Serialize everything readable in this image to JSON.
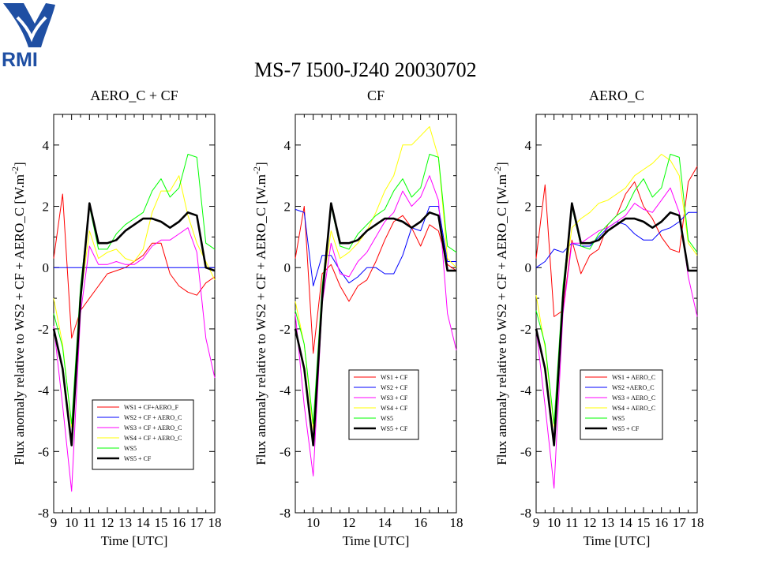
{
  "page": {
    "logo_text": "RMI",
    "logo_color": "#1f4fa3",
    "title": "MS-7 I500-J240 20030702"
  },
  "chart_data": [
    {
      "type": "line",
      "title": "AERO_C + CF",
      "xlabel": "Time [UTC]",
      "ylabel": "Flux anomaly relative to WS2 + CF + AERO_C [W.m^-2]",
      "xlim": [
        9,
        18
      ],
      "ylim": [
        -8,
        5
      ],
      "xticks": [
        9,
        10,
        11,
        12,
        13,
        14,
        15,
        16,
        17,
        18
      ],
      "yticks": [
        -8,
        -6,
        -4,
        -2,
        0,
        2,
        4
      ],
      "x": [
        9,
        9.5,
        10,
        10.5,
        11,
        11.5,
        12,
        12.5,
        13,
        13.5,
        14,
        14.5,
        15,
        15.5,
        16,
        16.5,
        17,
        17.5,
        18
      ],
      "grid": false,
      "legend_position": "bottom-right",
      "series": [
        {
          "name": "WS1 + CF+AERO_F",
          "color": "#ff0000",
          "width": 1,
          "values": [
            0.3,
            2.4,
            -2.3,
            -1.4,
            -1.0,
            -0.6,
            -0.2,
            -0.1,
            0.0,
            0.2,
            0.4,
            0.8,
            0.8,
            -0.2,
            -0.6,
            -0.8,
            -0.9,
            -0.5,
            -0.3
          ]
        },
        {
          "name": "WS2 + CF + AERO_C",
          "color": "#0000ff",
          "width": 1,
          "values": [
            0,
            0,
            0,
            0,
            0,
            0,
            0,
            0,
            0,
            0,
            0,
            0,
            0,
            0,
            0,
            0,
            0,
            0,
            0
          ]
        },
        {
          "name": "WS3 + CF + AERO_C",
          "color": "#ff00ff",
          "width": 1,
          "values": [
            -1.9,
            -4.5,
            -7.3,
            -1.5,
            0.7,
            0.1,
            0.1,
            0.2,
            0.1,
            0.1,
            0.3,
            0.7,
            0.9,
            0.9,
            1.1,
            1.3,
            0.5,
            -2.3,
            -3.6
          ]
        },
        {
          "name": "WS4 + CF + AERO_C",
          "color": "#ffff00",
          "width": 1,
          "values": [
            -1.0,
            -2.5,
            -5.2,
            -1.0,
            1.2,
            0.3,
            0.5,
            0.6,
            0.3,
            0.2,
            0.6,
            1.8,
            2.5,
            2.5,
            3.0,
            1.7,
            0.8,
            0.2,
            -0.4
          ]
        },
        {
          "name": "WS5",
          "color": "#00ff00",
          "width": 1,
          "values": [
            -1.5,
            -2.6,
            -5.1,
            -0.6,
            2.0,
            0.6,
            0.6,
            1.1,
            1.4,
            1.6,
            1.8,
            2.5,
            2.9,
            2.3,
            2.6,
            3.7,
            3.6,
            0.8,
            0.6
          ]
        },
        {
          "name": "WS5 + CF",
          "color": "#000000",
          "width": 2.6,
          "values": [
            -2.0,
            -3.3,
            -5.8,
            -1.0,
            2.1,
            0.8,
            0.8,
            0.9,
            1.2,
            1.4,
            1.6,
            1.6,
            1.5,
            1.3,
            1.5,
            1.8,
            1.7,
            0.0,
            -0.1
          ]
        }
      ]
    },
    {
      "type": "line",
      "title": "CF",
      "xlabel": "Time [UTC]",
      "ylabel": "Flux anomaly relative to WS2 + CF + AERO_C [W.m^-2]",
      "xlim": [
        9,
        18
      ],
      "ylim": [
        -8,
        5
      ],
      "xticks": [
        10,
        12,
        14,
        16,
        18
      ],
      "yticks": [
        -8,
        -6,
        -4,
        -2,
        0,
        2,
        4
      ],
      "x": [
        9,
        9.5,
        10,
        10.5,
        11,
        11.5,
        12,
        12.5,
        13,
        13.5,
        14,
        14.5,
        15,
        15.5,
        16,
        16.5,
        17,
        17.5,
        18
      ],
      "grid": false,
      "legend_position": "bottom-right",
      "series": [
        {
          "name": "WS1 + CF",
          "color": "#ff0000",
          "width": 1,
          "values": [
            0.3,
            2.0,
            -2.8,
            -0.2,
            0.1,
            -0.6,
            -1.1,
            -0.6,
            -0.4,
            0.2,
            0.9,
            1.5,
            1.7,
            1.3,
            0.7,
            1.4,
            1.2,
            0.1,
            -0.1
          ]
        },
        {
          "name": "WS2 + CF",
          "color": "#0000ff",
          "width": 1,
          "values": [
            1.9,
            1.8,
            -0.6,
            0.4,
            0.4,
            -0.1,
            -0.5,
            -0.3,
            0.0,
            0.0,
            -0.2,
            -0.2,
            0.4,
            1.3,
            1.2,
            2.0,
            2.0,
            0.2,
            0.2
          ]
        },
        {
          "name": "WS3 + CF",
          "color": "#ff00ff",
          "width": 1,
          "values": [
            -1.5,
            -4.5,
            -6.8,
            -1.2,
            0.8,
            -0.2,
            -0.3,
            0.2,
            0.5,
            1.0,
            1.5,
            1.8,
            2.5,
            2.0,
            2.3,
            3.0,
            2.2,
            -1.5,
            -2.7
          ]
        },
        {
          "name": "WS4 + CF",
          "color": "#ffff00",
          "width": 1,
          "values": [
            -1.1,
            -2.5,
            -5.3,
            -0.8,
            1.2,
            0.3,
            0.5,
            0.8,
            1.2,
            1.8,
            2.5,
            3.0,
            4.0,
            4.0,
            4.3,
            4.6,
            3.6,
            0.3,
            0.0
          ]
        },
        {
          "name": "WS5",
          "color": "#00ff00",
          "width": 1,
          "values": [
            -1.4,
            -2.5,
            -5.1,
            -0.6,
            2.0,
            0.7,
            0.6,
            1.1,
            1.4,
            1.7,
            1.9,
            2.5,
            2.9,
            2.3,
            2.6,
            3.7,
            3.6,
            0.7,
            0.5
          ]
        },
        {
          "name": "WS5 + CF",
          "color": "#000000",
          "width": 2.6,
          "values": [
            -2.0,
            -3.3,
            -5.8,
            -1.0,
            2.1,
            0.8,
            0.8,
            0.9,
            1.2,
            1.4,
            1.6,
            1.6,
            1.5,
            1.3,
            1.5,
            1.8,
            1.7,
            -0.1,
            -0.1
          ]
        }
      ]
    },
    {
      "type": "line",
      "title": "AERO_C",
      "xlabel": "Time [UTC]",
      "ylabel": "Flux anomaly relative to WS2 + CF + AERO_C [W.m^-2]",
      "xlim": [
        9,
        18
      ],
      "ylim": [
        -8,
        5
      ],
      "xticks": [
        9,
        10,
        11,
        12,
        13,
        14,
        15,
        16,
        17,
        18
      ],
      "yticks": [
        -8,
        -6,
        -4,
        -2,
        0,
        2,
        4
      ],
      "x": [
        9,
        9.5,
        10,
        10.5,
        11,
        11.5,
        12,
        12.5,
        13,
        13.5,
        14,
        14.5,
        15,
        15.5,
        16,
        16.5,
        17,
        17.5,
        18
      ],
      "grid": false,
      "legend_position": "bottom-right",
      "series": [
        {
          "name": "WS1 + AERO_C",
          "color": "#ff0000",
          "width": 1,
          "values": [
            0.3,
            2.7,
            -1.6,
            -1.4,
            0.9,
            -0.2,
            0.4,
            0.6,
            1.4,
            1.7,
            2.4,
            2.8,
            2.0,
            1.6,
            1.0,
            0.6,
            0.5,
            2.8,
            3.3
          ]
        },
        {
          "name": "WS2 +AERO_C",
          "color": "#0000ff",
          "width": 1,
          "values": [
            0,
            0.2,
            0.6,
            0.5,
            0.8,
            0.7,
            0.7,
            1.0,
            1.3,
            1.5,
            1.4,
            1.1,
            0.9,
            0.9,
            1.2,
            1.3,
            1.5,
            1.8,
            1.8
          ]
        },
        {
          "name": "WS3 + AERO_C",
          "color": "#ff00ff",
          "width": 1,
          "values": [
            -2.0,
            -4.5,
            -7.2,
            -1.5,
            0.8,
            0.8,
            1.0,
            1.2,
            1.3,
            1.5,
            1.7,
            2.1,
            1.9,
            1.8,
            2.2,
            2.6,
            1.8,
            -0.3,
            -1.6
          ]
        },
        {
          "name": "WS4 + AERO_C",
          "color": "#ffff00",
          "width": 1,
          "values": [
            -0.9,
            -2.6,
            -5.2,
            -0.8,
            1.3,
            1.6,
            1.8,
            2.1,
            2.2,
            2.4,
            2.6,
            3.0,
            3.2,
            3.4,
            3.7,
            3.5,
            3.0,
            0.8,
            0.4
          ]
        },
        {
          "name": "WS5",
          "color": "#00ff00",
          "width": 1,
          "values": [
            -1.4,
            -2.5,
            -5.1,
            -0.6,
            2.0,
            0.7,
            0.6,
            1.1,
            1.4,
            1.7,
            1.9,
            2.5,
            2.9,
            2.3,
            2.6,
            3.7,
            3.6,
            0.9,
            0.5
          ]
        },
        {
          "name": "WS5 + CF",
          "color": "#000000",
          "width": 2.6,
          "values": [
            -2.0,
            -3.3,
            -5.8,
            -1.0,
            2.1,
            0.8,
            0.8,
            0.9,
            1.2,
            1.4,
            1.6,
            1.6,
            1.5,
            1.3,
            1.5,
            1.8,
            1.7,
            -0.1,
            -0.1
          ]
        }
      ]
    }
  ]
}
